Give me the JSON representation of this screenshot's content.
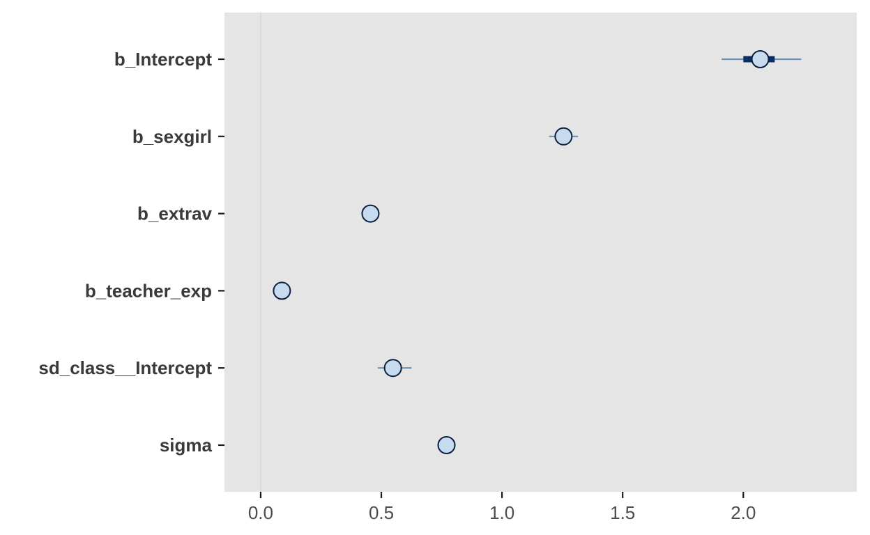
{
  "chart_data": {
    "type": "interval",
    "title": "",
    "xlabel": "",
    "ylabel": "",
    "xlim": [
      -0.15,
      2.47
    ],
    "x_ticks": [
      0.0,
      0.5,
      1.0,
      1.5,
      2.0
    ],
    "x_tick_labels": [
      "0.0",
      "0.5",
      "1.0",
      "1.5",
      "2.0"
    ],
    "reference_line_x": 0,
    "grid": false,
    "parameters": [
      {
        "name": "b_Intercept",
        "median": 2.07,
        "inner": [
          2.0,
          2.13
        ],
        "outer": [
          1.91,
          2.24
        ]
      },
      {
        "name": "b_sexgirl",
        "median": 1.255,
        "inner": [
          1.225,
          1.285
        ],
        "outer": [
          1.195,
          1.315
        ]
      },
      {
        "name": "b_extrav",
        "median": 0.455,
        "inner": [
          0.445,
          0.465
        ],
        "outer": [
          0.44,
          0.47
        ]
      },
      {
        "name": "b_teacher_exp",
        "median": 0.088,
        "inner": [
          0.084,
          0.092
        ],
        "outer": [
          0.08,
          0.096
        ]
      },
      {
        "name": "sd_class__Intercept",
        "median": 0.548,
        "inner": [
          0.53,
          0.57
        ],
        "outer": [
          0.485,
          0.625
        ]
      },
      {
        "name": "sigma",
        "median": 0.77,
        "inner": [
          0.765,
          0.775
        ],
        "outer": [
          0.76,
          0.78
        ]
      }
    ],
    "colors": {
      "panel": "#e5e5e5",
      "outer_interval": "#6b93b3",
      "inner_interval": "#0b2f63",
      "point_fill": "#c6dbed",
      "point_stroke": "#0b1f3f",
      "reference_line": "#d9d9d9"
    }
  }
}
